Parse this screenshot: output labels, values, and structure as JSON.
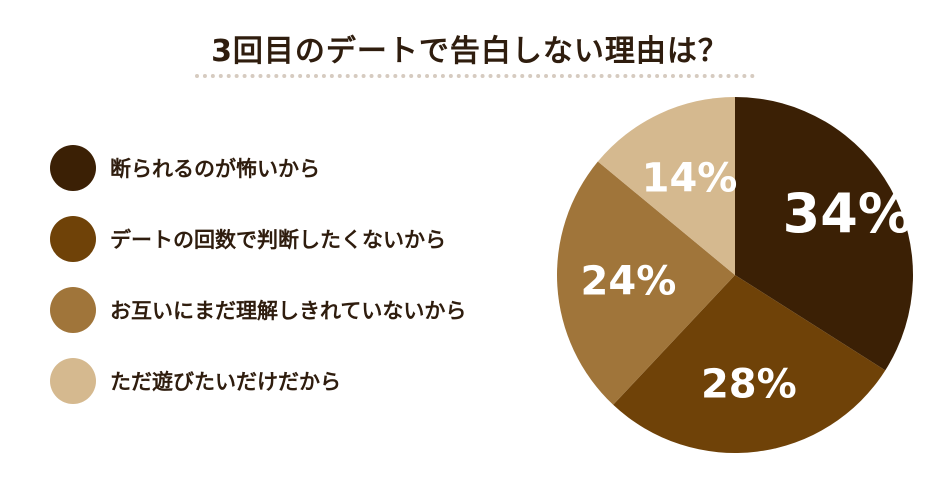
{
  "chart_data": {
    "type": "pie",
    "title": "3回目のデートで告白しない理由は？",
    "categories": [
      "断られるのが怖いから",
      "デートの回数で判断したくないから",
      "お互いにまだ理解しきれていないから",
      "ただ遊びたいだけだから"
    ],
    "values": [
      34,
      28,
      24,
      14
    ],
    "labels": [
      "34%",
      "28%",
      "24%",
      "14%"
    ],
    "colors": [
      "#3b2005",
      "#6f4208",
      "#a0753a",
      "#d5b98f"
    ],
    "legend_position": "left"
  }
}
